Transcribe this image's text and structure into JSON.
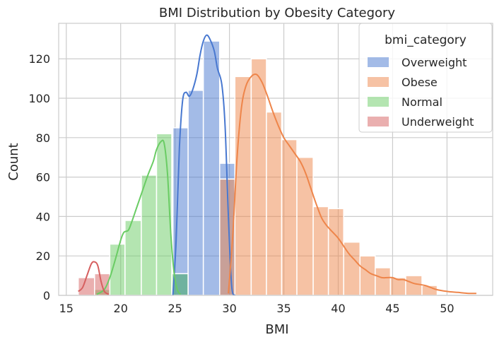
{
  "chart_data": {
    "type": "histogram",
    "title": "BMI Distribution by Obesity Category",
    "xlabel": "BMI",
    "ylabel": "Count",
    "xlim": [
      14.3,
      54.2
    ],
    "ylim": [
      0,
      138
    ],
    "xticks": [
      15,
      20,
      25,
      30,
      35,
      40,
      45,
      50
    ],
    "yticks": [
      0,
      20,
      40,
      60,
      80,
      100,
      120
    ],
    "grid": true,
    "legend": {
      "title": "bmi_category",
      "placement": "top-right"
    },
    "series": [
      {
        "name": "Overweight",
        "color": "#4878d0",
        "bars": [
          [
            24.8,
            26.2,
            11
          ],
          [
            24.8,
            26.2,
            85
          ],
          [
            26.2,
            27.6,
            104
          ],
          [
            27.6,
            29.1,
            129
          ],
          [
            29.1,
            30.5,
            67
          ]
        ],
        "kde": [
          [
            24.8,
            0
          ],
          [
            25.1,
            28
          ],
          [
            25.4,
            75
          ],
          [
            25.7,
            99
          ],
          [
            26.0,
            103
          ],
          [
            26.3,
            101
          ],
          [
            26.6,
            104
          ],
          [
            27.0,
            112
          ],
          [
            27.3,
            122
          ],
          [
            27.6,
            129
          ],
          [
            27.9,
            132
          ],
          [
            28.2,
            130
          ],
          [
            28.6,
            124
          ],
          [
            28.9,
            115
          ],
          [
            29.3,
            107
          ],
          [
            29.6,
            86
          ],
          [
            29.9,
            40
          ],
          [
            30.2,
            5
          ],
          [
            30.5,
            0
          ]
        ]
      },
      {
        "name": "Obese",
        "color": "#ee854a",
        "bars": [
          [
            29.1,
            30.5,
            59
          ],
          [
            30.5,
            32.0,
            111
          ],
          [
            32.0,
            33.4,
            120
          ],
          [
            33.4,
            34.8,
            93
          ],
          [
            34.8,
            36.2,
            79
          ],
          [
            36.2,
            37.7,
            70
          ],
          [
            37.7,
            39.1,
            45
          ],
          [
            39.1,
            40.5,
            44
          ],
          [
            40.5,
            42.0,
            27
          ],
          [
            42.0,
            43.4,
            20
          ],
          [
            43.4,
            44.8,
            14
          ],
          [
            44.8,
            46.2,
            9
          ],
          [
            46.2,
            47.7,
            10
          ],
          [
            47.7,
            49.1,
            5
          ]
        ],
        "kde": [
          [
            29.9,
            1
          ],
          [
            30.3,
            30
          ],
          [
            30.7,
            70
          ],
          [
            31.1,
            95
          ],
          [
            31.5,
            106
          ],
          [
            32.0,
            111
          ],
          [
            32.5,
            112
          ],
          [
            33.0,
            108
          ],
          [
            33.5,
            101
          ],
          [
            34.0,
            93
          ],
          [
            34.5,
            86
          ],
          [
            35.0,
            80
          ],
          [
            35.5,
            76
          ],
          [
            36.0,
            72
          ],
          [
            36.5,
            68
          ],
          [
            37.0,
            62
          ],
          [
            37.5,
            54
          ],
          [
            38.0,
            46
          ],
          [
            38.5,
            39
          ],
          [
            39.0,
            35
          ],
          [
            39.5,
            32
          ],
          [
            40.0,
            29
          ],
          [
            40.5,
            25
          ],
          [
            41.0,
            21
          ],
          [
            41.5,
            18
          ],
          [
            42.0,
            15
          ],
          [
            42.5,
            13
          ],
          [
            43.0,
            11
          ],
          [
            43.5,
            10
          ],
          [
            44.0,
            9
          ],
          [
            44.5,
            9
          ],
          [
            45.0,
            9
          ],
          [
            45.5,
            8
          ],
          [
            46.0,
            8
          ],
          [
            46.5,
            7
          ],
          [
            47.0,
            6
          ],
          [
            48.0,
            5
          ],
          [
            49.0,
            3
          ],
          [
            50.0,
            2
          ],
          [
            51.0,
            1.5
          ],
          [
            52.0,
            1
          ],
          [
            52.7,
            1
          ]
        ]
      },
      {
        "name": "Normal",
        "color": "#6acc64",
        "bars": [
          [
            17.6,
            19.0,
            3
          ],
          [
            19.0,
            20.4,
            26
          ],
          [
            20.4,
            21.9,
            38
          ],
          [
            21.9,
            23.3,
            61
          ],
          [
            23.3,
            24.7,
            82
          ],
          [
            24.7,
            26.2,
            11
          ]
        ],
        "kde": [
          [
            17.8,
            0.5
          ],
          [
            18.5,
            3
          ],
          [
            19.0,
            9
          ],
          [
            19.5,
            18
          ],
          [
            20.0,
            28
          ],
          [
            20.3,
            32
          ],
          [
            20.7,
            33
          ],
          [
            21.0,
            37
          ],
          [
            21.5,
            45
          ],
          [
            22.0,
            53
          ],
          [
            22.5,
            61
          ],
          [
            23.0,
            68
          ],
          [
            23.3,
            74
          ],
          [
            23.7,
            78
          ],
          [
            24.0,
            77
          ],
          [
            24.3,
            62
          ],
          [
            24.6,
            32
          ],
          [
            24.9,
            12
          ],
          [
            25.2,
            3
          ],
          [
            25.5,
            0.5
          ]
        ]
      },
      {
        "name": "Underweight",
        "color": "#d65f5f",
        "bars": [
          [
            16.1,
            17.6,
            9
          ],
          [
            17.6,
            19.0,
            11
          ]
        ],
        "kde": [
          [
            16.1,
            2
          ],
          [
            16.5,
            4
          ],
          [
            16.9,
            10
          ],
          [
            17.3,
            16
          ],
          [
            17.6,
            17
          ],
          [
            17.9,
            15
          ],
          [
            18.2,
            7
          ],
          [
            18.5,
            2
          ],
          [
            18.9,
            0.5
          ]
        ]
      }
    ]
  }
}
